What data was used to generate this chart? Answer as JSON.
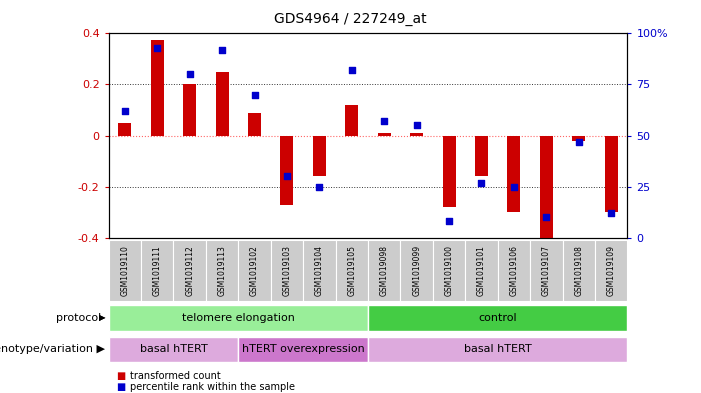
{
  "title": "GDS4964 / 227249_at",
  "samples": [
    "GSM1019110",
    "GSM1019111",
    "GSM1019112",
    "GSM1019113",
    "GSM1019102",
    "GSM1019103",
    "GSM1019104",
    "GSM1019105",
    "GSM1019098",
    "GSM1019099",
    "GSM1019100",
    "GSM1019101",
    "GSM1019106",
    "GSM1019107",
    "GSM1019108",
    "GSM1019109"
  ],
  "bar_values": [
    0.05,
    0.375,
    0.2,
    0.25,
    0.09,
    -0.27,
    -0.16,
    0.12,
    0.01,
    0.01,
    -0.28,
    -0.16,
    -0.3,
    -0.41,
    -0.02,
    -0.3
  ],
  "blue_values": [
    62,
    93,
    80,
    92,
    70,
    30,
    25,
    82,
    57,
    55,
    8,
    27,
    25,
    10,
    47,
    12
  ],
  "ylim": [
    -0.4,
    0.4
  ],
  "y2lim": [
    0,
    100
  ],
  "yticks": [
    -0.4,
    -0.2,
    0.0,
    0.2,
    0.4
  ],
  "y2ticks": [
    0,
    25,
    50,
    75,
    100
  ],
  "bar_color": "#CC0000",
  "blue_color": "#0000CC",
  "zero_line_color": "#FF6666",
  "dotted_line_color": "#333333",
  "bg_color": "#ffffff",
  "plot_bg": "#ffffff",
  "protocol_groups": [
    {
      "label": "telomere elongation",
      "start": 0,
      "end": 7,
      "color": "#99EE99"
    },
    {
      "label": "control",
      "start": 8,
      "end": 15,
      "color": "#44CC44"
    }
  ],
  "genotype_groups": [
    {
      "label": "basal hTERT",
      "start": 0,
      "end": 3,
      "color": "#DDAADD"
    },
    {
      "label": "hTERT overexpression",
      "start": 4,
      "end": 7,
      "color": "#CC77CC"
    },
    {
      "label": "basal hTERT",
      "start": 8,
      "end": 15,
      "color": "#DDAADD"
    }
  ],
  "protocol_label": "protocol",
  "genotype_label": "genotype/variation",
  "legend_transformed": "transformed count",
  "legend_percentile": "percentile rank within the sample"
}
